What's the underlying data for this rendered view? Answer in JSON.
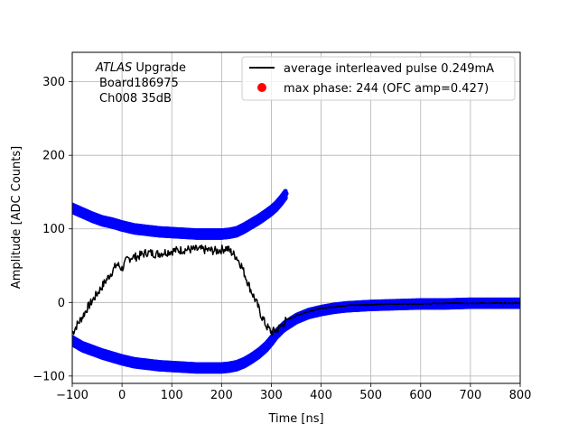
{
  "chart_data": {
    "type": "scatter",
    "xlabel": "Time [ns]",
    "ylabel": "Amplitude [ADC Counts]",
    "xlim": [
      -100,
      800
    ],
    "ylim": [
      -110,
      340
    ],
    "x_ticks": [
      -100,
      0,
      100,
      200,
      300,
      400,
      500,
      600,
      700,
      800
    ],
    "y_ticks": [
      -100,
      0,
      100,
      200,
      300
    ],
    "grid": true,
    "legend_position": "top-right",
    "annotation": {
      "experiment": "ATLAS",
      "experiment_suffix": "Upgrade",
      "board": "Board186975",
      "channel": "Ch008 35dB"
    },
    "series": [
      {
        "name": "average interleaved pulse 0.249mA",
        "kind": "line",
        "color": "#000000",
        "x": [
          -100,
          -90,
          -80,
          -70,
          -60,
          -50,
          -40,
          -30,
          -20,
          -10,
          0,
          10,
          20,
          30,
          50,
          70,
          100,
          130,
          160,
          190,
          210,
          220,
          230,
          240,
          250,
          260,
          270,
          280,
          290,
          300,
          310,
          320,
          330,
          350,
          375,
          400,
          450,
          500,
          550,
          600,
          650,
          700,
          750,
          800
        ],
        "y": [
          -42,
          -30,
          -20,
          -8,
          2,
          12,
          22,
          32,
          42,
          52,
          46,
          58,
          62,
          62,
          68,
          66,
          70,
          72,
          72,
          70,
          74,
          68,
          62,
          50,
          32,
          15,
          0,
          -18,
          -32,
          -40,
          -38,
          -32,
          -24,
          -18,
          -12,
          -8,
          -4,
          -3,
          -2,
          -2,
          -1,
          -1,
          -1,
          -1
        ]
      },
      {
        "name": "max phase: 244 (OFC amp=0.427)",
        "kind": "scatter",
        "color": "#0000ff",
        "branches": [
          {
            "x": [
              -100,
              -80,
              -60,
              -40,
              -20,
              0,
              25,
              50,
              75,
              100,
              125,
              150,
              175,
              200,
              215,
              230,
              245,
              260,
              275,
              290,
              300,
              310,
              320,
              330
            ],
            "y": [
              128,
              122,
              116,
              111,
              108,
              104,
              100,
              98,
              96,
              95,
              94,
              93,
              93,
              93,
              94,
              96,
              101,
              107,
              113,
              120,
              125,
              131,
              139,
              148
            ]
          },
          {
            "x": [
              -100,
              -80,
              -60,
              -40,
              -20,
              0,
              25,
              50,
              75,
              100,
              125,
              150,
              175,
              200,
              215,
              230,
              245,
              260,
              275,
              290,
              300,
              310,
              325,
              350,
              375,
              400,
              425,
              450,
              475,
              500,
              550,
              600,
              650,
              700,
              750,
              800
            ],
            "y": [
              -52,
              -60,
              -65,
              -70,
              -74,
              -78,
              -82,
              -84,
              -86,
              -87,
              -88,
              -89,
              -89,
              -89,
              -88,
              -86,
              -82,
              -76,
              -69,
              -60,
              -52,
              -43,
              -33,
              -22,
              -15,
              -11,
              -8,
              -6,
              -5,
              -4,
              -3,
              -2,
              -2,
              -1,
              -1,
              -1
            ]
          }
        ]
      }
    ]
  }
}
